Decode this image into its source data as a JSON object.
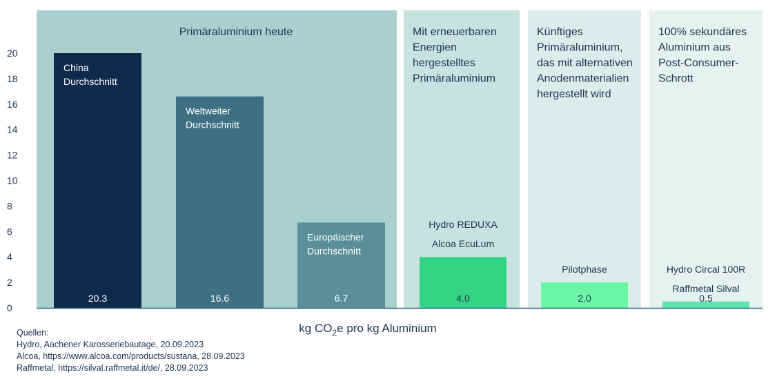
{
  "chart_data": {
    "type": "bar",
    "xlabel": "kg CO2e pro kg Aluminium",
    "xlabel_parts": {
      "pre": "kg CO",
      "sub": "2",
      "post": "e pro kg Aluminium"
    },
    "ylim": [
      0,
      20
    ],
    "yticks": [
      0,
      2,
      4,
      6,
      8,
      10,
      12,
      14,
      16,
      18,
      20
    ],
    "grid": false,
    "groups": [
      {
        "title": [
          "Primäraluminium heute"
        ],
        "background": "#a9cfcf",
        "bars": [
          {
            "label": [
              "China",
              "Durchschnitt"
            ],
            "value": 20.3,
            "value_label": "20.3",
            "color": "#0d2a4a"
          },
          {
            "label": [
              "Weltweiter",
              "Durchschnitt"
            ],
            "value": 16.6,
            "value_label": "16.6",
            "color": "#3e6f82"
          },
          {
            "label": [
              "Europäischer",
              "Durchschnitt"
            ],
            "value": 6.7,
            "value_label": "6.7",
            "color": "#5a8f98"
          }
        ]
      },
      {
        "title": [
          "Mit erneuerbaren",
          "Energien",
          "hergestelltes",
          "Primäraluminium"
        ],
        "background": "#c8e2e0",
        "bars": [
          {
            "label": [
              "Hydro REDUXA",
              "Alcoa EcuLum"
            ],
            "value": 4.0,
            "value_label": "4.0",
            "color": "#35d484"
          }
        ]
      },
      {
        "title": [
          "Künftiges",
          "Primäraluminium,",
          "das mit alternativen",
          "Anodenmaterialien",
          "hergestellt wird"
        ],
        "background": "#dcecea",
        "bars": [
          {
            "label": [
              "Pilotphase"
            ],
            "value": 2.0,
            "value_label": "2.0",
            "color": "#6cf7a7"
          }
        ]
      },
      {
        "title": [
          "100% sekundäres",
          "Aluminium aus",
          "Post-Consumer-",
          "Schrott"
        ],
        "background": "#e6f2f0",
        "bars": [
          {
            "label": [
              "Hydro Circal 100R",
              "Raffmetal Silval"
            ],
            "value": 0.5,
            "value_label": "0.5",
            "color": "#5fe6b0"
          }
        ]
      }
    ]
  },
  "sources": [
    "Quellen:",
    "Hydro, Aachener Karosseriebautage, 20.09.2023",
    "Alcoa, https://www.alcoa.com/products/sustana, 28.09.2023",
    "Raffmetal, https://silval.raffmetal.it/de/, 28.09.2023"
  ]
}
